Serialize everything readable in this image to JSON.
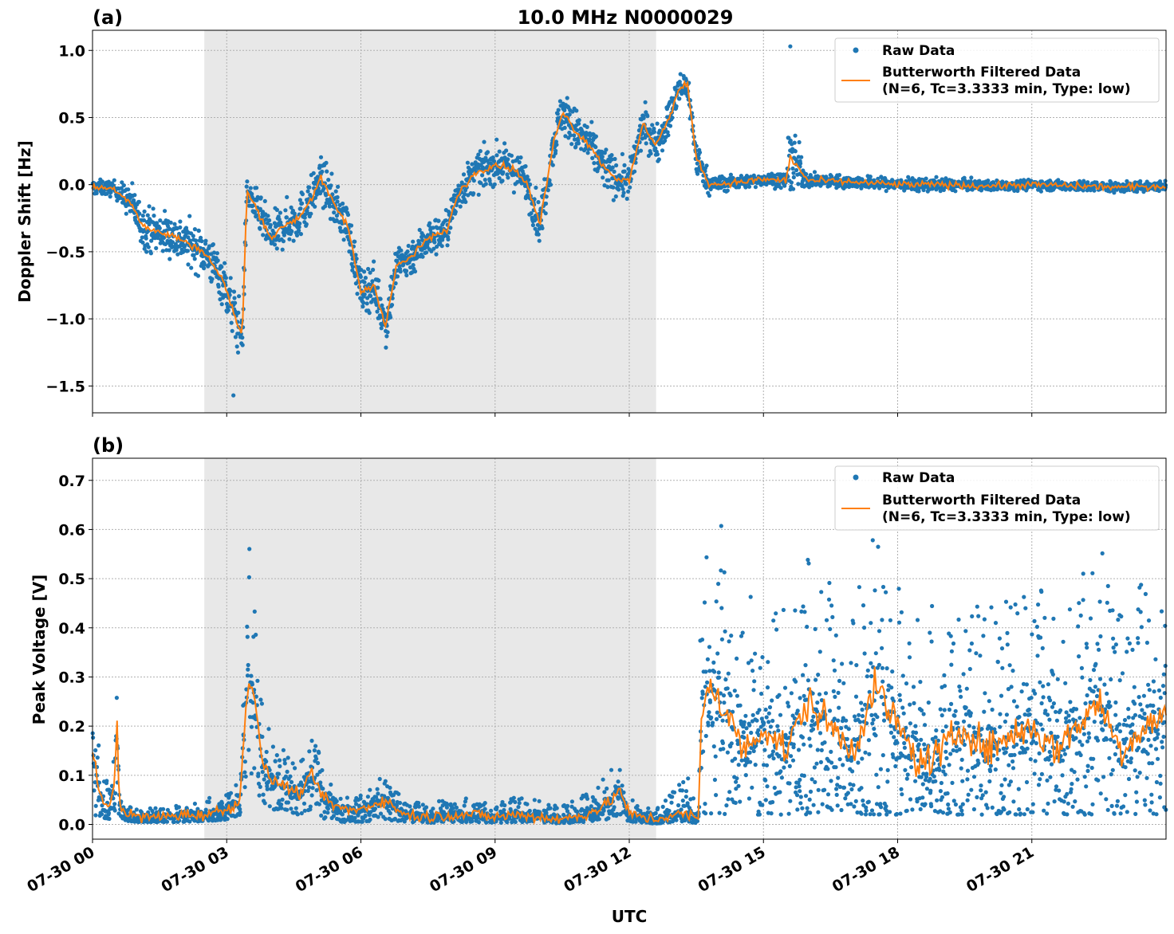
{
  "figure": {
    "title": "10.0 MHz N0000029",
    "xlabel": "UTC",
    "x_tick_labels": [
      "07-30 00",
      "07-30 03",
      "07-30 06",
      "07-30 09",
      "07-30 12",
      "07-30 15",
      "07-30 18",
      "07-30 21"
    ],
    "colors": {
      "raw": "#1f77b4",
      "filtered": "#ff7f0e",
      "shade": "#e8e8e8",
      "grid": "#b0b0b0"
    },
    "legend": {
      "raw_label": "Raw Data",
      "filtered_label_1": "Butterworth Filtered Data",
      "filtered_label_2": "(N=6, Tc=3.3333 min, Type: low)",
      "placement": "top-right"
    },
    "shaded_region_hours": [
      2.5,
      12.6
    ]
  },
  "chart_data": [
    {
      "type": "scatter",
      "panel": "(a)",
      "ylabel": "Doppler Shift [Hz]",
      "xlim_hours": [
        0,
        24
      ],
      "ylim": [
        -1.7,
        1.15
      ],
      "y_ticks": [
        1.0,
        0.5,
        0.0,
        -0.5,
        -1.0,
        -1.5
      ],
      "y_tick_labels": [
        "1.0",
        "0.5",
        "0.0",
        "−0.5",
        "−1.0",
        "−1.5"
      ],
      "grid": true,
      "series": [
        {
          "name": "Butterworth Filtered Data",
          "hours": [
            0,
            0.5,
            0.9,
            1.1,
            1.4,
            1.8,
            2.2,
            2.5,
            2.9,
            3.2,
            3.35,
            3.45,
            3.7,
            4.0,
            4.3,
            4.6,
            4.9,
            5.1,
            5.4,
            5.7,
            6.0,
            6.3,
            6.55,
            6.8,
            7.1,
            7.5,
            7.9,
            8.2,
            8.6,
            9.0,
            9.4,
            9.7,
            10.0,
            10.3,
            10.5,
            10.8,
            11.1,
            11.4,
            11.7,
            12.0,
            12.3,
            12.6,
            12.9,
            13.1,
            13.3,
            13.5,
            13.8,
            14.5,
            15.0,
            15.5,
            15.6,
            16.0,
            17.0,
            18.0,
            19.0,
            20.0,
            21.0,
            22.0,
            23.0,
            24.0
          ],
          "values": [
            -0.02,
            -0.03,
            -0.15,
            -0.3,
            -0.35,
            -0.38,
            -0.45,
            -0.5,
            -0.7,
            -1.0,
            -1.12,
            -0.05,
            -0.2,
            -0.4,
            -0.3,
            -0.25,
            -0.1,
            0.05,
            -0.15,
            -0.3,
            -0.8,
            -0.75,
            -1.05,
            -0.6,
            -0.55,
            -0.4,
            -0.35,
            -0.05,
            0.1,
            0.15,
            0.12,
            0.02,
            -0.3,
            0.3,
            0.55,
            0.4,
            0.3,
            0.15,
            0.05,
            0.02,
            0.45,
            0.3,
            0.5,
            0.7,
            0.75,
            0.2,
            0.0,
            0.02,
            0.04,
            0.03,
            0.2,
            0.03,
            0.02,
            0.0,
            0.0,
            -0.01,
            0.0,
            -0.01,
            -0.02,
            -0.01
          ]
        },
        {
          "name": "Raw Data",
          "band_hours": [
            0,
            0.5,
            0.9,
            1.1,
            1.4,
            1.8,
            2.2,
            2.5,
            2.9,
            3.2,
            3.35,
            3.45,
            3.7,
            4.0,
            4.3,
            4.6,
            4.9,
            5.1,
            5.4,
            5.7,
            6.0,
            6.3,
            6.55,
            6.8,
            7.1,
            7.5,
            7.9,
            8.2,
            8.6,
            9.0,
            9.4,
            9.7,
            10.0,
            10.3,
            10.5,
            10.8,
            11.1,
            11.4,
            11.7,
            12.0,
            12.3,
            12.6,
            12.9,
            13.1,
            13.3,
            13.5,
            13.8,
            14.5,
            15.0,
            15.5,
            15.6,
            16.0,
            17.0,
            18.0,
            19.0,
            20.0,
            21.0,
            22.0,
            23.0,
            24.0
          ],
          "band_spread": [
            0.12,
            0.12,
            0.3,
            0.35,
            0.35,
            0.35,
            0.35,
            0.35,
            0.4,
            0.45,
            0.45,
            0.25,
            0.3,
            0.35,
            0.35,
            0.35,
            0.35,
            0.35,
            0.35,
            0.35,
            0.35,
            0.35,
            0.4,
            0.35,
            0.3,
            0.3,
            0.3,
            0.3,
            0.3,
            0.3,
            0.3,
            0.3,
            0.35,
            0.35,
            0.35,
            0.35,
            0.35,
            0.35,
            0.3,
            0.3,
            0.3,
            0.3,
            0.3,
            0.25,
            0.25,
            0.3,
            0.15,
            0.1,
            0.1,
            0.12,
            0.6,
            0.1,
            0.1,
            0.1,
            0.1,
            0.08,
            0.08,
            0.08,
            0.08,
            0.08
          ],
          "annotated_extremes": {
            "max": 1.03,
            "min": -1.57
          }
        }
      ]
    },
    {
      "type": "scatter",
      "panel": "(b)",
      "ylabel": "Peak Voltage [V]",
      "xlim_hours": [
        0,
        24
      ],
      "ylim": [
        -0.03,
        0.745
      ],
      "y_ticks": [
        0.7,
        0.6,
        0.5,
        0.4,
        0.3,
        0.2,
        0.1,
        0.0
      ],
      "y_tick_labels": [
        "0.7",
        "0.6",
        "0.5",
        "0.4",
        "0.3",
        "0.2",
        "0.1",
        "0.0"
      ],
      "grid": true,
      "series": [
        {
          "name": "Butterworth Filtered Data",
          "hours": [
            0,
            0.2,
            0.4,
            0.5,
            0.55,
            0.6,
            0.8,
            1.0,
            1.5,
            2.0,
            2.5,
            3.0,
            3.3,
            3.4,
            3.5,
            3.65,
            3.8,
            4.0,
            4.3,
            4.6,
            4.9,
            5.2,
            5.6,
            6.0,
            6.5,
            7.0,
            7.5,
            8.0,
            8.5,
            9.0,
            9.5,
            10.0,
            10.5,
            11.0,
            11.5,
            11.8,
            12.0,
            12.3,
            12.6,
            13.0,
            13.3,
            13.55,
            13.6,
            13.8,
            14.0,
            14.3,
            14.6,
            15.0,
            15.5,
            16.0,
            16.5,
            17.0,
            17.5,
            18.0,
            18.5,
            19.0,
            19.5,
            20.0,
            20.5,
            21.0,
            21.5,
            22.0,
            22.5,
            23.0,
            23.5,
            24.0
          ],
          "values": [
            0.15,
            0.05,
            0.03,
            0.1,
            0.21,
            0.04,
            0.02,
            0.015,
            0.015,
            0.02,
            0.02,
            0.03,
            0.05,
            0.2,
            0.3,
            0.25,
            0.12,
            0.09,
            0.08,
            0.06,
            0.1,
            0.05,
            0.03,
            0.03,
            0.05,
            0.02,
            0.015,
            0.02,
            0.02,
            0.015,
            0.02,
            0.015,
            0.01,
            0.02,
            0.04,
            0.07,
            0.02,
            0.015,
            0.01,
            0.02,
            0.02,
            0.01,
            0.2,
            0.3,
            0.25,
            0.2,
            0.15,
            0.2,
            0.15,
            0.25,
            0.2,
            0.15,
            0.28,
            0.2,
            0.12,
            0.15,
            0.2,
            0.15,
            0.18,
            0.2,
            0.15,
            0.2,
            0.25,
            0.15,
            0.2,
            0.22
          ]
        },
        {
          "name": "Raw Data",
          "band_hours": [
            0,
            0.2,
            0.4,
            0.5,
            0.55,
            0.6,
            0.8,
            1.0,
            1.5,
            2.0,
            2.5,
            3.0,
            3.3,
            3.4,
            3.5,
            3.65,
            3.8,
            4.0,
            4.3,
            4.6,
            4.9,
            5.2,
            5.6,
            6.0,
            6.5,
            7.0,
            7.5,
            8.0,
            8.5,
            9.0,
            9.5,
            10.0,
            10.5,
            11.0,
            11.5,
            11.8,
            12.0,
            12.3,
            12.6,
            13.0,
            13.3,
            13.55,
            13.6,
            13.8,
            14.0,
            14.3,
            14.6,
            15.0,
            15.5,
            16.0,
            16.5,
            17.0,
            17.5,
            18.0,
            18.5,
            19.0,
            19.5,
            20.0,
            20.5,
            21.0,
            21.5,
            22.0,
            22.5,
            23.0,
            23.5,
            24.0
          ],
          "band_low": [
            0.02,
            0.01,
            0.01,
            0.02,
            0.05,
            0.01,
            0.005,
            0.005,
            0.005,
            0.005,
            0.005,
            0.01,
            0.02,
            0.05,
            0.1,
            0.08,
            0.04,
            0.03,
            0.03,
            0.02,
            0.03,
            0.01,
            0.005,
            0.005,
            0.01,
            0.005,
            0.003,
            0.005,
            0.005,
            0.003,
            0.005,
            0.003,
            0.002,
            0.005,
            0.01,
            0.02,
            0.005,
            0.003,
            0.002,
            0.005,
            0.005,
            0.002,
            0.02,
            0.02,
            0.02,
            0.02,
            0.02,
            0.02,
            0.02,
            0.02,
            0.02,
            0.02,
            0.02,
            0.02,
            0.02,
            0.02,
            0.02,
            0.02,
            0.02,
            0.02,
            0.02,
            0.02,
            0.02,
            0.02,
            0.02,
            0.02
          ],
          "band_high": [
            0.3,
            0.12,
            0.07,
            0.2,
            0.44,
            0.08,
            0.04,
            0.03,
            0.035,
            0.04,
            0.05,
            0.07,
            0.1,
            0.4,
            0.64,
            0.42,
            0.25,
            0.18,
            0.16,
            0.12,
            0.2,
            0.1,
            0.06,
            0.06,
            0.1,
            0.05,
            0.04,
            0.06,
            0.05,
            0.04,
            0.06,
            0.05,
            0.04,
            0.06,
            0.1,
            0.15,
            0.06,
            0.04,
            0.03,
            0.07,
            0.1,
            0.03,
            0.55,
            0.65,
            0.7,
            0.5,
            0.45,
            0.5,
            0.45,
            0.55,
            0.5,
            0.45,
            0.6,
            0.5,
            0.45,
            0.45,
            0.5,
            0.45,
            0.5,
            0.5,
            0.45,
            0.5,
            0.58,
            0.45,
            0.5,
            0.45
          ]
        }
      ]
    }
  ]
}
